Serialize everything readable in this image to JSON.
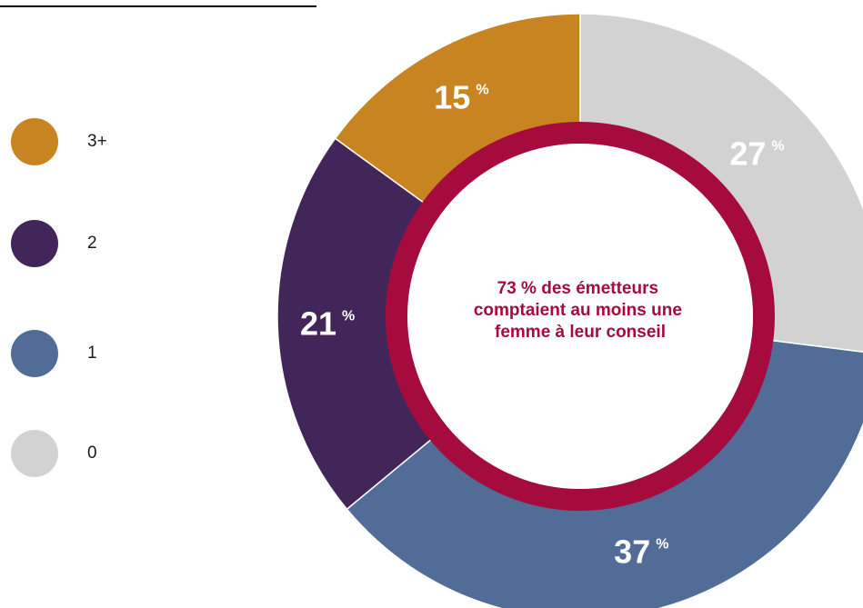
{
  "chart_data": {
    "type": "pie",
    "variant": "donut",
    "categories": [
      "0",
      "1",
      "2",
      "3+"
    ],
    "values": [
      27,
      37,
      21,
      15
    ],
    "value_labels": [
      "27",
      "37",
      "21",
      "15"
    ],
    "unit": "%",
    "colors": [
      "#d2d2d2",
      "#516c96",
      "#42265a",
      "#c98422"
    ],
    "ring_color": "#a60b3e",
    "legend": {
      "placement": "left",
      "items": [
        {
          "label": "3+",
          "color": "#c98422"
        },
        {
          "label": "2",
          "color": "#42265a"
        },
        {
          "label": "1",
          "color": "#516c96"
        },
        {
          "label": "0",
          "color": "#d2d2d2"
        }
      ]
    },
    "center_text": [
      "73 % des émetteurs",
      "comptaient au moins une",
      "femme à leur conseil"
    ]
  }
}
